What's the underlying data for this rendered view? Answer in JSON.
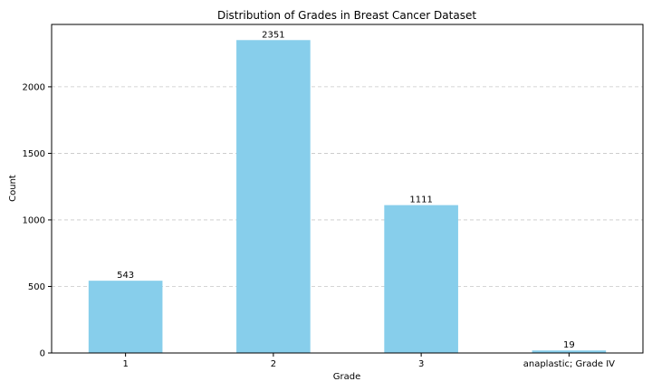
{
  "colors": {
    "bar": "#87ceeb",
    "grid": "#c8c8c8",
    "axis": "#000000"
  },
  "chart_data": {
    "type": "bar",
    "title": "Distribution of Grades in Breast Cancer Dataset",
    "xlabel": "Grade",
    "ylabel": "Count",
    "categories": [
      "1",
      "2",
      "3",
      "anaplastic; Grade IV"
    ],
    "values": [
      543,
      2351,
      1111,
      19
    ],
    "data_labels": [
      "543",
      "2351",
      "1111",
      "19"
    ],
    "ylim": [
      0,
      2468.55
    ],
    "yticks": [
      0,
      500,
      1000,
      1500,
      2000
    ],
    "ytick_labels": [
      "0",
      "500",
      "1000",
      "1500",
      "2000"
    ],
    "grid": "y-dashed",
    "legend": "none"
  }
}
